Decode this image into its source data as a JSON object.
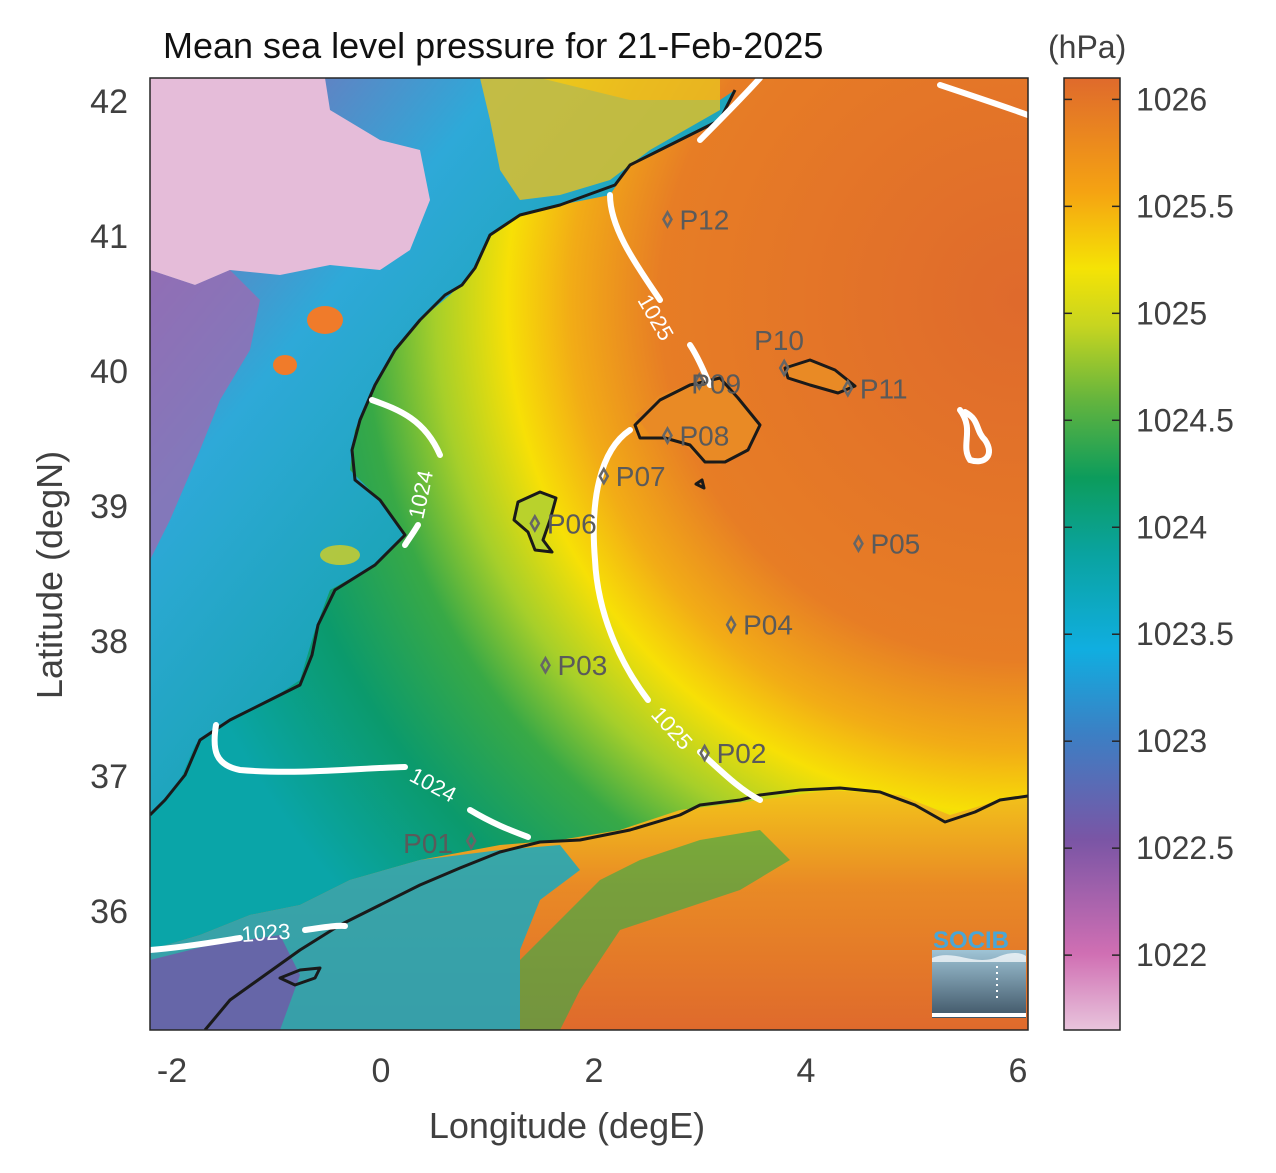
{
  "title": "Mean sea level pressure for 21-Feb-2025",
  "units_label": "(hPa)",
  "x_axis": {
    "label": "Longitude (degE)",
    "ticks": [
      "-2",
      "0",
      "2",
      "4",
      "6"
    ]
  },
  "y_axis": {
    "label": "Latitude (degN)",
    "ticks": [
      "42",
      "41",
      "40",
      "39",
      "38",
      "37",
      "36"
    ]
  },
  "colorbar": {
    "ticks": [
      "1026",
      "1025.5",
      "1025",
      "1024.5",
      "1024",
      "1023.5",
      "1023",
      "1022.5",
      "1022"
    ],
    "range": [
      1021.65,
      1026.1
    ]
  },
  "stations": [
    {
      "id": "P01",
      "lon": 0.85,
      "lat": 36.5
    },
    {
      "id": "P02",
      "lon": 3.05,
      "lat": 37.15
    },
    {
      "id": "P03",
      "lon": 1.55,
      "lat": 37.8
    },
    {
      "id": "P04",
      "lon": 3.3,
      "lat": 38.1
    },
    {
      "id": "P05",
      "lon": 4.5,
      "lat": 38.7
    },
    {
      "id": "P06",
      "lon": 1.45,
      "lat": 38.85
    },
    {
      "id": "P07",
      "lon": 2.1,
      "lat": 39.2
    },
    {
      "id": "P08",
      "lon": 2.7,
      "lat": 39.5
    },
    {
      "id": "P09",
      "lon": 3.0,
      "lat": 39.9
    },
    {
      "id": "P10",
      "lon": 3.8,
      "lat": 40.0
    },
    {
      "id": "P11",
      "lon": 4.4,
      "lat": 39.85
    },
    {
      "id": "P12",
      "lon": 2.7,
      "lat": 41.1
    }
  ],
  "contour_labels": [
    "1025",
    "1024",
    "1025",
    "1024",
    "1023"
  ],
  "logo": {
    "text": "SOCIB"
  },
  "colors": {
    "land_high": "#e5bcd9",
    "sea_high": "#e06a2e",
    "sea_mid": "#f0e010",
    "sea_low": "#10a070",
    "coast": "#1a1a1a",
    "contour": "#ffffff",
    "station": "#666666"
  }
}
